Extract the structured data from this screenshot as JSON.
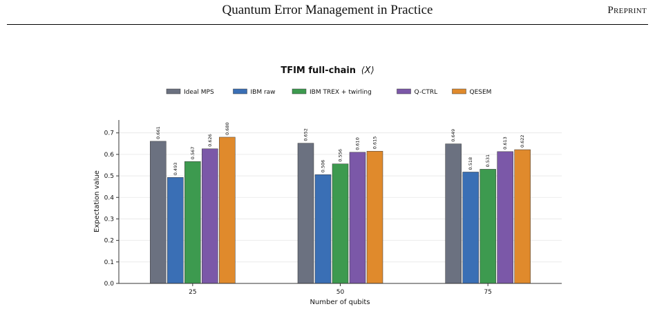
{
  "header": {
    "title": "Quantum Error Management in Practice",
    "tag": "Preprint"
  },
  "colors": {
    "Ideal MPS": "#6b7180",
    "IBM raw": "#3a6fb5",
    "IBM TREX + twirling": "#3d9a4f",
    "Q-CTRL": "#7b58a8",
    "QESEM": "#e08a2c",
    "grid": "#e6e6e6",
    "axis": "#333333"
  },
  "chart_data": {
    "type": "bar",
    "title": "TFIM full-chain",
    "title_math": "⟨X⟩",
    "xlabel": "Number of qubits",
    "ylabel": "Expectation value",
    "categories": [
      "25",
      "50",
      "75"
    ],
    "ylim": [
      0,
      0.76
    ],
    "yticks": [
      "0.0",
      "0.1",
      "0.2",
      "0.3",
      "0.4",
      "0.5",
      "0.6",
      "0.7"
    ],
    "grid": "horizontal",
    "legend_position": "top-center",
    "series": [
      {
        "name": "Ideal MPS",
        "values": [
          0.661,
          0.652,
          0.649
        ],
        "labels": [
          "0.661",
          "0.652",
          "0.649"
        ]
      },
      {
        "name": "IBM raw",
        "values": [
          0.493,
          0.506,
          0.518
        ],
        "labels": [
          "0.493",
          "0.506",
          "0.518"
        ]
      },
      {
        "name": "IBM TREX + twirling",
        "values": [
          0.567,
          0.556,
          0.531
        ],
        "labels": [
          "0.567",
          "0.556",
          "0.531"
        ]
      },
      {
        "name": "Q-CTRL",
        "values": [
          0.626,
          0.61,
          0.613
        ],
        "labels": [
          "0.626",
          "0.610",
          "0.613"
        ]
      },
      {
        "name": "QESEM",
        "values": [
          0.68,
          0.615,
          0.622
        ],
        "labels": [
          "0.680",
          "0.615",
          "0.622"
        ]
      }
    ]
  }
}
